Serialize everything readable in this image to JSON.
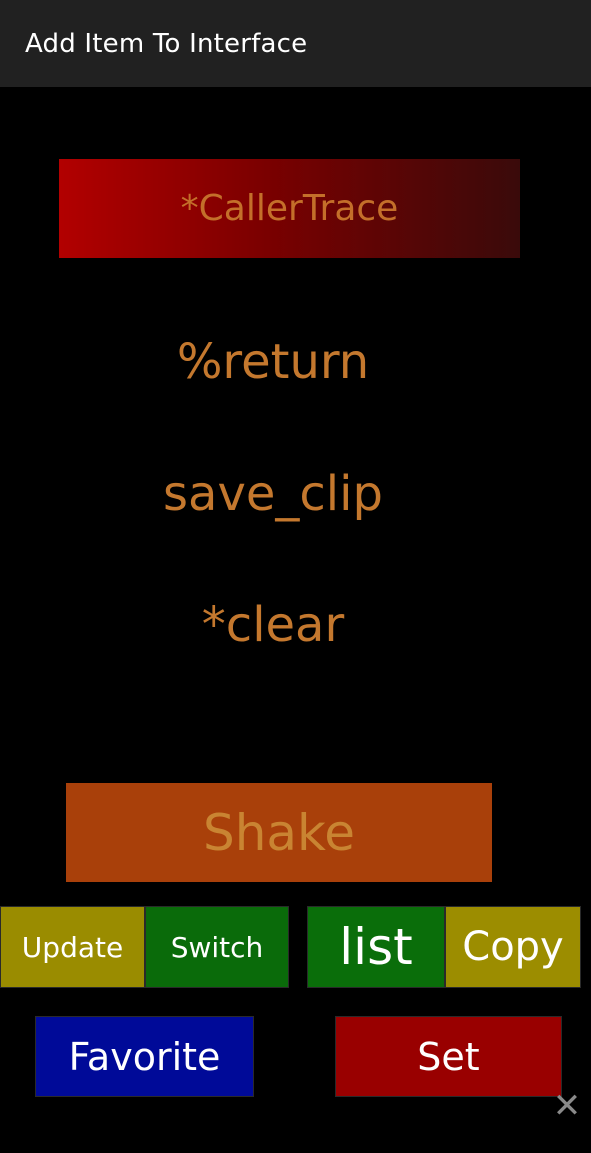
{
  "header": {
    "title": "Add Item To Interface"
  },
  "items": {
    "caller_trace": "*CallerTrace",
    "return": "%return",
    "save_clip": "save_clip",
    "clear": "*clear"
  },
  "buttons": {
    "shake": "Shake",
    "update": "Update",
    "switch": "Switch",
    "list": "list",
    "copy": "Copy",
    "favorite": "Favorite",
    "set": "Set"
  },
  "icons": {
    "close": "close-icon"
  },
  "colors": {
    "accent_text": "#c4782e",
    "caller_trace_bg": "#b20000",
    "shake_bg": "#a9400a",
    "olive": "#9a8c00",
    "green": "#0a6b0a",
    "blue": "#000a98",
    "red": "#990000"
  }
}
